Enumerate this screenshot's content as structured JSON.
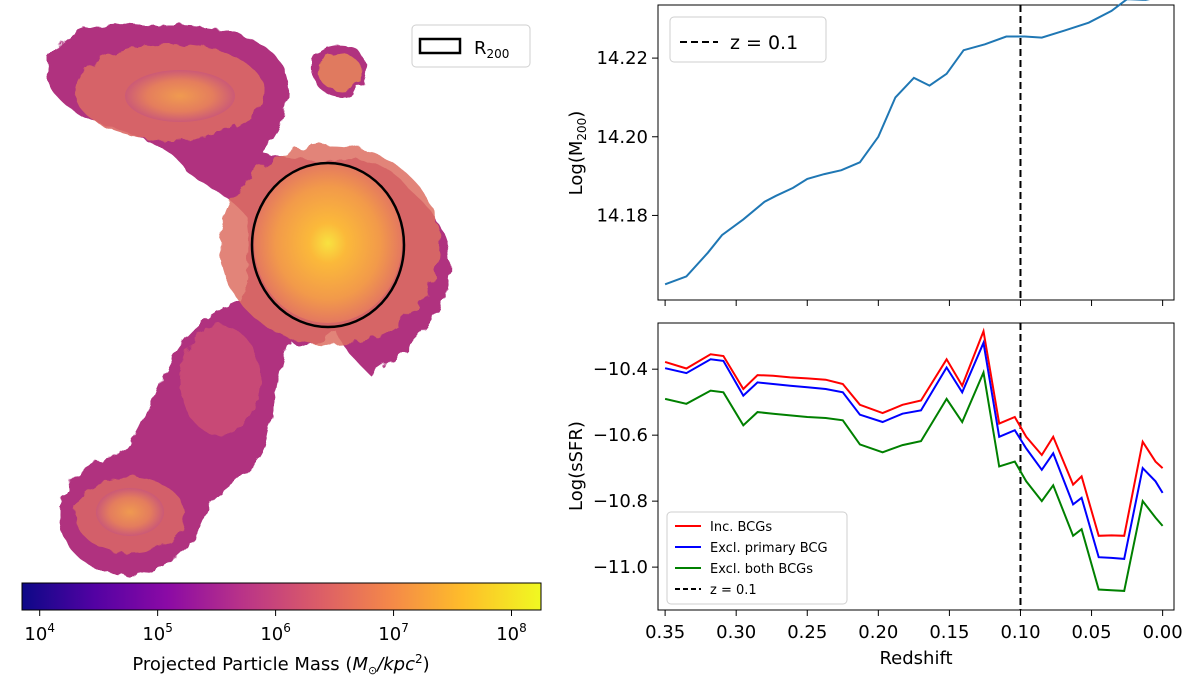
{
  "map_panel": {
    "legend_label": "R",
    "legend_sub": "200",
    "colorbar": {
      "label_prefix": "Projected Particle Mass (",
      "label_math": "M",
      "label_sun": "⊙",
      "label_unit": "/kpc",
      "label_sup": "2",
      "label_suffix": ")",
      "log_range": [
        3.85,
        8.25
      ],
      "ticks": [
        {
          "base": "10",
          "exp": "4",
          "log": 4
        },
        {
          "base": "10",
          "exp": "5",
          "log": 5
        },
        {
          "base": "10",
          "exp": "6",
          "log": 6
        },
        {
          "base": "10",
          "exp": "7",
          "log": 7
        },
        {
          "base": "10",
          "exp": "8",
          "log": 8
        }
      ],
      "colors": [
        "#0d0887",
        "#5302a3",
        "#8b0aa5",
        "#b83289",
        "#db5c68",
        "#f48849",
        "#febd2a",
        "#f0f921"
      ]
    }
  },
  "chart_data": [
    {
      "type": "line",
      "title": "",
      "xlabel": "",
      "ylabel_main": "Log(M",
      "ylabel_sub": "200",
      "ylabel_end": ")",
      "xlim": [
        0.355,
        -0.008
      ],
      "ylim": [
        14.1585,
        14.2335
      ],
      "yticks": [
        "14.18",
        "14.20",
        "14.22"
      ],
      "series": [
        {
          "name": "M200",
          "color": "#1f77b4",
          "x": [
            0.35,
            0.335,
            0.32,
            0.31,
            0.295,
            0.28,
            0.272,
            0.26,
            0.25,
            0.238,
            0.226,
            0.213,
            0.2,
            0.188,
            0.175,
            0.164,
            0.152,
            0.14,
            0.125,
            0.11,
            0.097,
            0.085,
            0.069,
            0.052,
            0.036,
            0.025,
            0.012,
            0.0
          ],
          "y": [
            14.1625,
            14.1645,
            14.1705,
            14.175,
            14.179,
            14.1835,
            14.185,
            14.187,
            14.1893,
            14.1905,
            14.1915,
            14.1935,
            14.2,
            14.21,
            14.215,
            14.213,
            14.216,
            14.222,
            14.2235,
            14.2255,
            14.2255,
            14.2252,
            14.227,
            14.229,
            14.232,
            14.235,
            14.2348,
            14.2357
          ]
        }
      ],
      "vline": {
        "x": 0.1,
        "label": "z = 0.1",
        "color": "#000000"
      }
    },
    {
      "type": "line",
      "title": "",
      "xlabel": "Redshift",
      "ylabel": "Log(sSFR)",
      "xlim": [
        0.355,
        -0.008
      ],
      "ylim": [
        -11.13,
        -10.26
      ],
      "xticks": [
        "0.35",
        "0.30",
        "0.25",
        "0.20",
        "0.15",
        "0.10",
        "0.05",
        "0.00"
      ],
      "yticks": [
        "−10.4",
        "−10.6",
        "−10.8",
        "−11.0"
      ],
      "series": [
        {
          "name": "Inc. BCGs",
          "color": "#ff0000",
          "x": [
            0.35,
            0.335,
            0.318,
            0.309,
            0.295,
            0.285,
            0.274,
            0.262,
            0.25,
            0.237,
            0.225,
            0.213,
            0.197,
            0.183,
            0.17,
            0.152,
            0.141,
            0.126,
            0.115,
            0.104,
            0.096,
            0.085,
            0.077,
            0.063,
            0.057,
            0.045,
            0.036,
            0.027,
            0.014,
            0.005,
            0.0
          ],
          "y": [
            -10.378,
            -10.398,
            -10.355,
            -10.36,
            -10.46,
            -10.418,
            -10.42,
            -10.425,
            -10.428,
            -10.432,
            -10.445,
            -10.508,
            -10.533,
            -10.508,
            -10.495,
            -10.37,
            -10.45,
            -10.285,
            -10.565,
            -10.545,
            -10.605,
            -10.66,
            -10.605,
            -10.75,
            -10.725,
            -10.905,
            -10.904,
            -10.905,
            -10.62,
            -10.68,
            -10.7
          ]
        },
        {
          "name": "Excl. primary BCG",
          "color": "#0000ff",
          "x": [
            0.35,
            0.335,
            0.318,
            0.309,
            0.295,
            0.285,
            0.274,
            0.262,
            0.25,
            0.237,
            0.225,
            0.213,
            0.197,
            0.183,
            0.17,
            0.152,
            0.141,
            0.126,
            0.115,
            0.104,
            0.096,
            0.085,
            0.077,
            0.063,
            0.057,
            0.045,
            0.036,
            0.027,
            0.014,
            0.005,
            0.0
          ],
          "y": [
            -10.397,
            -10.412,
            -10.37,
            -10.375,
            -10.48,
            -10.44,
            -10.445,
            -10.45,
            -10.455,
            -10.46,
            -10.47,
            -10.538,
            -10.56,
            -10.535,
            -10.525,
            -10.395,
            -10.47,
            -10.32,
            -10.605,
            -10.585,
            -10.64,
            -10.705,
            -10.655,
            -10.81,
            -10.79,
            -10.97,
            -10.972,
            -10.975,
            -10.7,
            -10.74,
            -10.775
          ]
        },
        {
          "name": "Excl. both BCGs",
          "color": "#008000",
          "x": [
            0.35,
            0.335,
            0.318,
            0.309,
            0.295,
            0.285,
            0.274,
            0.262,
            0.25,
            0.237,
            0.225,
            0.213,
            0.197,
            0.183,
            0.17,
            0.152,
            0.141,
            0.126,
            0.115,
            0.104,
            0.096,
            0.085,
            0.077,
            0.063,
            0.057,
            0.045,
            0.036,
            0.027,
            0.014,
            0.005,
            0.0
          ],
          "y": [
            -10.49,
            -10.505,
            -10.465,
            -10.47,
            -10.57,
            -10.53,
            -10.535,
            -10.54,
            -10.545,
            -10.548,
            -10.555,
            -10.628,
            -10.652,
            -10.63,
            -10.618,
            -10.49,
            -10.56,
            -10.41,
            -10.695,
            -10.68,
            -10.74,
            -10.8,
            -10.752,
            -10.905,
            -10.885,
            -11.068,
            -11.07,
            -11.072,
            -10.8,
            -10.85,
            -10.875
          ]
        }
      ],
      "vline": {
        "x": 0.1,
        "label": "z = 0.1",
        "color": "#000000"
      }
    }
  ]
}
